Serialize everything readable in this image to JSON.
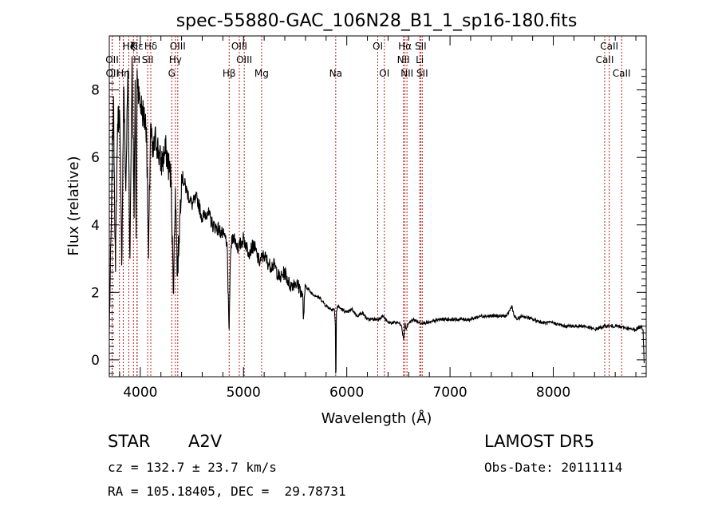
{
  "chart_data": {
    "type": "line",
    "title": "spec-55880-GAC_106N28_B1_1_sp16-180.fits",
    "xlabel": "Wavelength (Å)",
    "ylabel": "Flux (relative)",
    "xlim": [
      3700,
      8900
    ],
    "ylim": [
      -0.5,
      9.6
    ],
    "x_ticks": [
      4000,
      5000,
      6000,
      7000,
      8000
    ],
    "y_ticks": [
      0,
      2,
      4,
      6,
      8
    ],
    "x_tick_labels": [
      "4000",
      "5000",
      "6000",
      "7000",
      "8000"
    ],
    "y_tick_labels": [
      "0",
      "2",
      "4",
      "6",
      "8"
    ],
    "grid": false,
    "line_color": "#000000",
    "marker_color": "#b22222",
    "spectrum": {
      "x": [
        3700,
        3720,
        3740,
        3760,
        3780,
        3800,
        3820,
        3840,
        3860,
        3880,
        3900,
        3920,
        3940,
        3950,
        3960,
        3970,
        3990,
        4020,
        4060,
        4080,
        4100,
        4120,
        4150,
        4200,
        4250,
        4300,
        4320,
        4340,
        4360,
        4400,
        4450,
        4500,
        4550,
        4600,
        4650,
        4700,
        4750,
        4800,
        4840,
        4850,
        4861,
        4870,
        4880,
        4900,
        4950,
        5000,
        5050,
        5100,
        5150,
        5200,
        5250,
        5300,
        5350,
        5400,
        5450,
        5500,
        5550,
        5575,
        5580,
        5600,
        5650,
        5700,
        5750,
        5800,
        5850,
        5880,
        5890,
        5893,
        5896,
        5900,
        5910,
        5950,
        6000,
        6050,
        6100,
        6150,
        6200,
        6250,
        6300,
        6350,
        6400,
        6450,
        6500,
        6530,
        6550,
        6563,
        6575,
        6600,
        6650,
        6700,
        6750,
        6800,
        6900,
        7000,
        7100,
        7200,
        7300,
        7400,
        7500,
        7550,
        7600,
        7620,
        7650,
        7700,
        7800,
        7900,
        8000,
        8100,
        8200,
        8300,
        8400,
        8500,
        8600,
        8700,
        8760,
        8800,
        8850,
        8870,
        8880
      ],
      "y": [
        0.9,
        4.2,
        7.8,
        2.6,
        7.0,
        7.4,
        2.8,
        8.1,
        5.0,
        8.6,
        3.0,
        9.0,
        4.2,
        8.3,
        3.6,
        8.6,
        7.7,
        7.4,
        6.9,
        3.0,
        7.0,
        6.0,
        6.6,
        5.8,
        6.2,
        5.3,
        2.0,
        5.1,
        2.5,
        5.5,
        5.0,
        4.6,
        4.8,
        4.2,
        4.4,
        4.0,
        3.9,
        3.7,
        3.5,
        2.0,
        0.9,
        2.6,
        3.4,
        3.7,
        3.3,
        3.6,
        3.2,
        3.4,
        2.9,
        3.1,
        2.8,
        2.8,
        2.4,
        2.6,
        2.2,
        2.3,
        2.1,
        1.8,
        1.2,
        2.2,
        2.0,
        1.9,
        1.8,
        1.6,
        1.5,
        1.5,
        1.0,
        -0.4,
        -0.3,
        1.4,
        1.6,
        1.5,
        1.4,
        1.5,
        1.3,
        1.4,
        1.2,
        1.2,
        1.2,
        1.3,
        1.1,
        1.1,
        1.1,
        1.0,
        0.6,
        1.1,
        0.9,
        1.1,
        1.2,
        1.1,
        1.1,
        1.1,
        1.2,
        1.2,
        1.2,
        1.2,
        1.3,
        1.3,
        1.3,
        1.3,
        1.6,
        1.3,
        1.2,
        1.3,
        1.2,
        1.1,
        1.1,
        1.0,
        1.0,
        1.0,
        0.9,
        1.0,
        1.0,
        0.95,
        0.9,
        0.9,
        1.0,
        0.9,
        -0.1
      ]
    },
    "line_markers": [
      {
        "label": "Hε",
        "x": 3970,
        "row": 1
      },
      {
        "label": "Hζ",
        "x": 3889,
        "row": 1
      },
      {
        "label": "K",
        "x": 3934,
        "row": 1
      },
      {
        "label": "Hδ",
        "x": 4102,
        "row": 1
      },
      {
        "label": "OIII",
        "x": 4363,
        "row": 1
      },
      {
        "label": "OIII",
        "x": 4959,
        "row": 1
      },
      {
        "label": "OI",
        "x": 6300,
        "row": 1
      },
      {
        "label": "Hα",
        "x": 6563,
        "row": 1
      },
      {
        "label": "SII",
        "x": 6716,
        "row": 1
      },
      {
        "label": "CaII",
        "x": 8542,
        "row": 1
      },
      {
        "label": "OII",
        "x": 3727,
        "row": 2
      },
      {
        "label": "H",
        "x": 3968,
        "row": 2
      },
      {
        "label": "SII",
        "x": 4072,
        "row": 2
      },
      {
        "label": "Hγ",
        "x": 4340,
        "row": 2
      },
      {
        "label": "OIII",
        "x": 5007,
        "row": 2
      },
      {
        "label": "NII",
        "x": 6548,
        "row": 2
      },
      {
        "label": "Li",
        "x": 6707,
        "row": 2
      },
      {
        "label": "CaII",
        "x": 8498,
        "row": 2
      },
      {
        "label": "OII",
        "x": 3729,
        "row": 3
      },
      {
        "label": "Hη",
        "x": 3835,
        "row": 3
      },
      {
        "label": "G",
        "x": 4305,
        "row": 3
      },
      {
        "label": "Hβ",
        "x": 4861,
        "row": 3
      },
      {
        "label": "Mg",
        "x": 5175,
        "row": 3
      },
      {
        "label": "Na",
        "x": 5893,
        "row": 3
      },
      {
        "label": "OI",
        "x": 6364,
        "row": 3
      },
      {
        "label": "NII",
        "x": 6583,
        "row": 3
      },
      {
        "label": "SII",
        "x": 6731,
        "row": 3
      },
      {
        "label": "CaII",
        "x": 8662,
        "row": 3
      }
    ],
    "marker_lines_x": [
      3727,
      3729,
      3798,
      3835,
      3889,
      3934,
      3968,
      3970,
      4072,
      4102,
      4305,
      4340,
      4363,
      4861,
      4959,
      5007,
      5175,
      5893,
      6300,
      6364,
      6548,
      6563,
      6583,
      6707,
      6716,
      6731,
      8498,
      8542,
      8662
    ]
  },
  "info": {
    "object_class": "STAR",
    "subclass": "A2V",
    "survey": "LAMOST DR5",
    "redshift": "cz = 132.7 ± 23.7 km/s",
    "obs_date": "Obs-Date: 20111114",
    "coords": "RA = 105.18405, DEC =  29.78731"
  }
}
